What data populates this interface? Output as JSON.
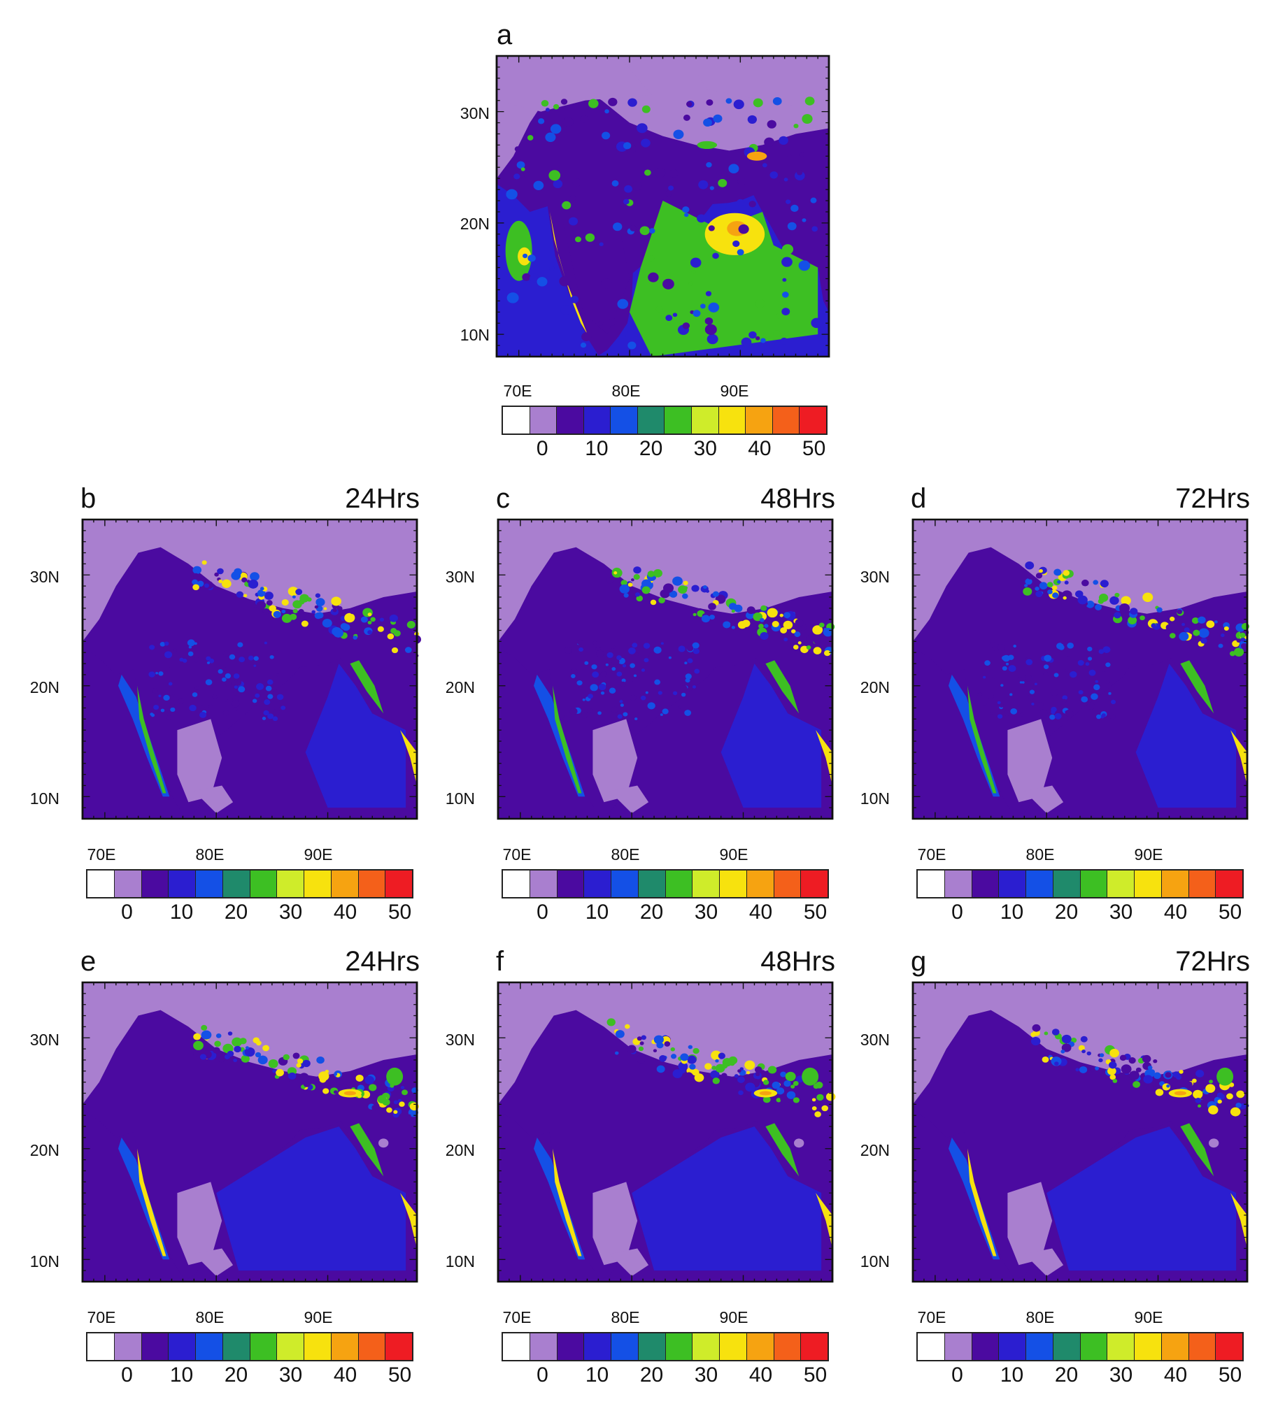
{
  "colorbar": {
    "colors": [
      "#ffffff",
      "#a97fcf",
      "#4b0aa0",
      "#2b1ed0",
      "#1450e6",
      "#1f8a6b",
      "#3dbf23",
      "#cfec2a",
      "#f7e20e",
      "#f6a311",
      "#f4601a",
      "#ee1c23"
    ],
    "tick_labels": [
      "0",
      "10",
      "20",
      "30",
      "40",
      "50"
    ]
  },
  "axes": {
    "lat_labels": [
      "30N",
      "20N",
      "10N"
    ],
    "lon_labels": [
      "70E",
      "80E",
      "90E"
    ]
  },
  "map_colors": {
    "no_rain": "#a97fcf",
    "light": "#4b0aa0",
    "moderate": "#2b1ed0",
    "blue": "#1450e6",
    "teal": "#1f8a6b",
    "green": "#3dbf23",
    "yellow": "#f7e20e",
    "orange": "#f6a311"
  },
  "panels": [
    {
      "letter": "a",
      "time": ""
    },
    {
      "letter": "b",
      "time": "24Hrs"
    },
    {
      "letter": "c",
      "time": "48Hrs"
    },
    {
      "letter": "d",
      "time": "72Hrs"
    },
    {
      "letter": "e",
      "time": "24Hrs"
    },
    {
      "letter": "f",
      "time": "48Hrs"
    },
    {
      "letter": "g",
      "time": "72Hrs"
    }
  ]
}
